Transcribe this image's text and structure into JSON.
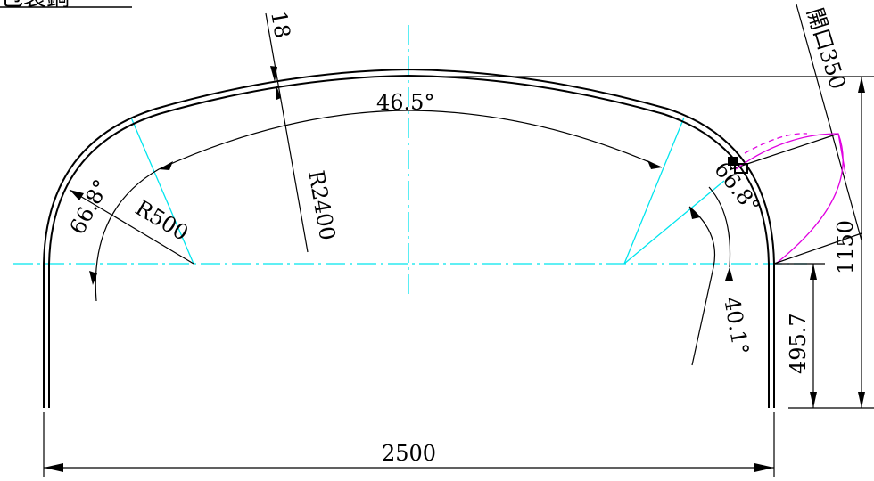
{
  "header": {
    "title": "包装鋼"
  },
  "dimensions": {
    "thickness": "18",
    "crown_angle": "46.5°",
    "crown_radius": "R2400",
    "knuckle_radius": "R500",
    "knuckle_angle_left": "66.8°",
    "knuckle_angle_right": "66.8°",
    "opening_angle": "40.1°",
    "opening_label": "開口350",
    "total_height": "1150",
    "cut_height": "495.7",
    "width": "2500"
  },
  "colors": {
    "outline": "#000000",
    "centerline": "#00e5ee",
    "construction": "#e000e0"
  }
}
